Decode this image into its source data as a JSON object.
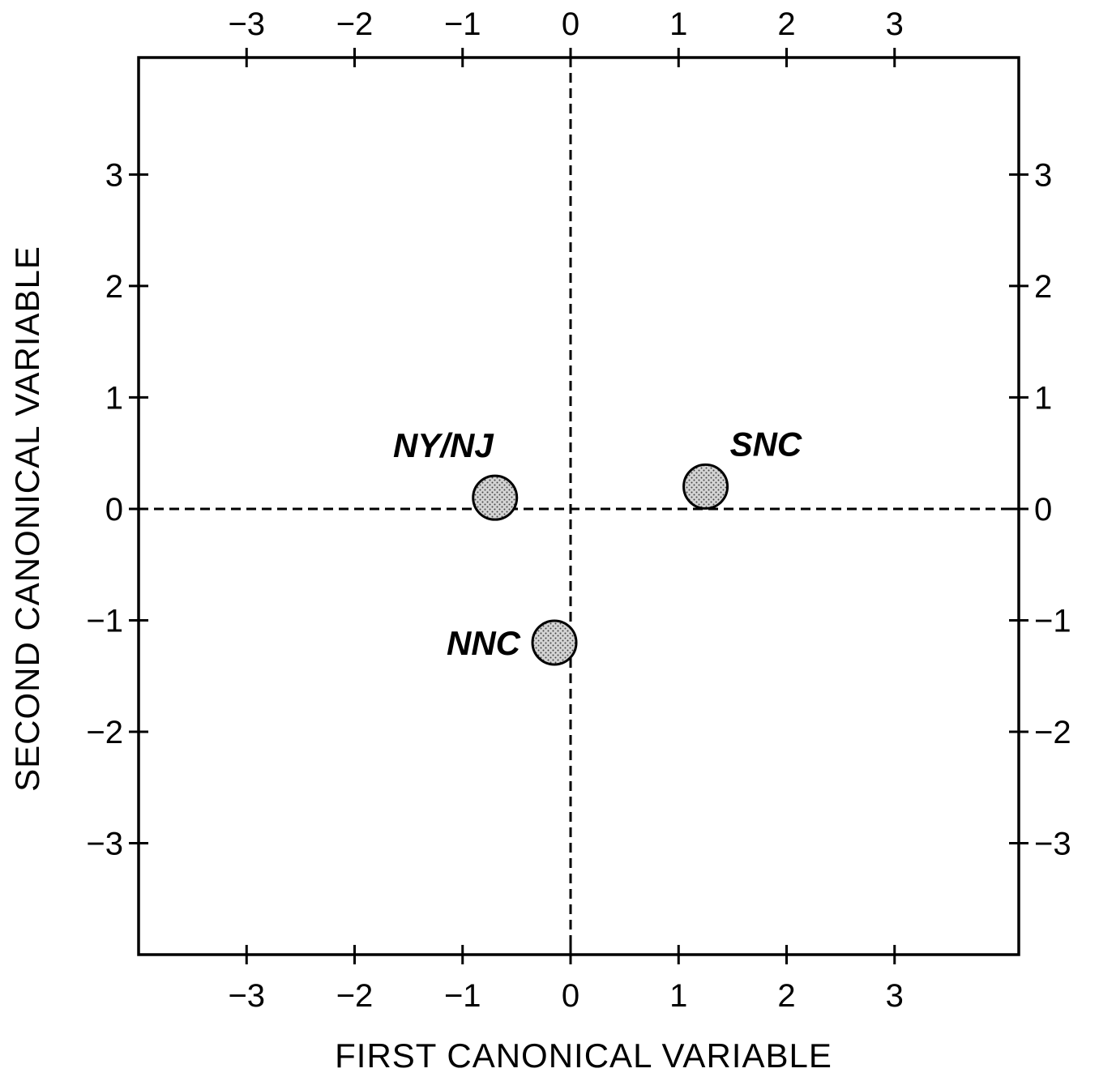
{
  "chart_data": {
    "type": "scatter",
    "xlabel": "FIRST CANONICAL VARIABLE",
    "ylabel": "SECOND CANONICAL VARIABLE",
    "xlim": [
      -4.0,
      4.15
    ],
    "ylim": [
      -4.0,
      4.05
    ],
    "xticks": [
      -3,
      -2,
      -1,
      0,
      1,
      2,
      3
    ],
    "yticks": [
      -3,
      -2,
      -1,
      0,
      1,
      2,
      3
    ],
    "x_tick_labels": [
      "−3",
      "−2",
      "−1",
      "0",
      "1",
      "2",
      "3"
    ],
    "y_tick_labels": [
      "−3",
      "−2",
      "−1",
      "0",
      "1",
      "2",
      "3"
    ],
    "reference_lines": {
      "x": 0,
      "y": 0,
      "style": "dashed"
    },
    "grid": false,
    "points": [
      {
        "label": "NY/NJ",
        "x": -0.7,
        "y": 0.1,
        "label_position": "upper-left"
      },
      {
        "label": "SNC",
        "x": 1.25,
        "y": 0.2,
        "label_position": "upper-right"
      },
      {
        "label": "NNC",
        "x": -0.15,
        "y": -1.2,
        "label_position": "left"
      }
    ],
    "marker": {
      "shape": "circle",
      "fill": "stippled-gray",
      "edge": "#000000"
    }
  }
}
